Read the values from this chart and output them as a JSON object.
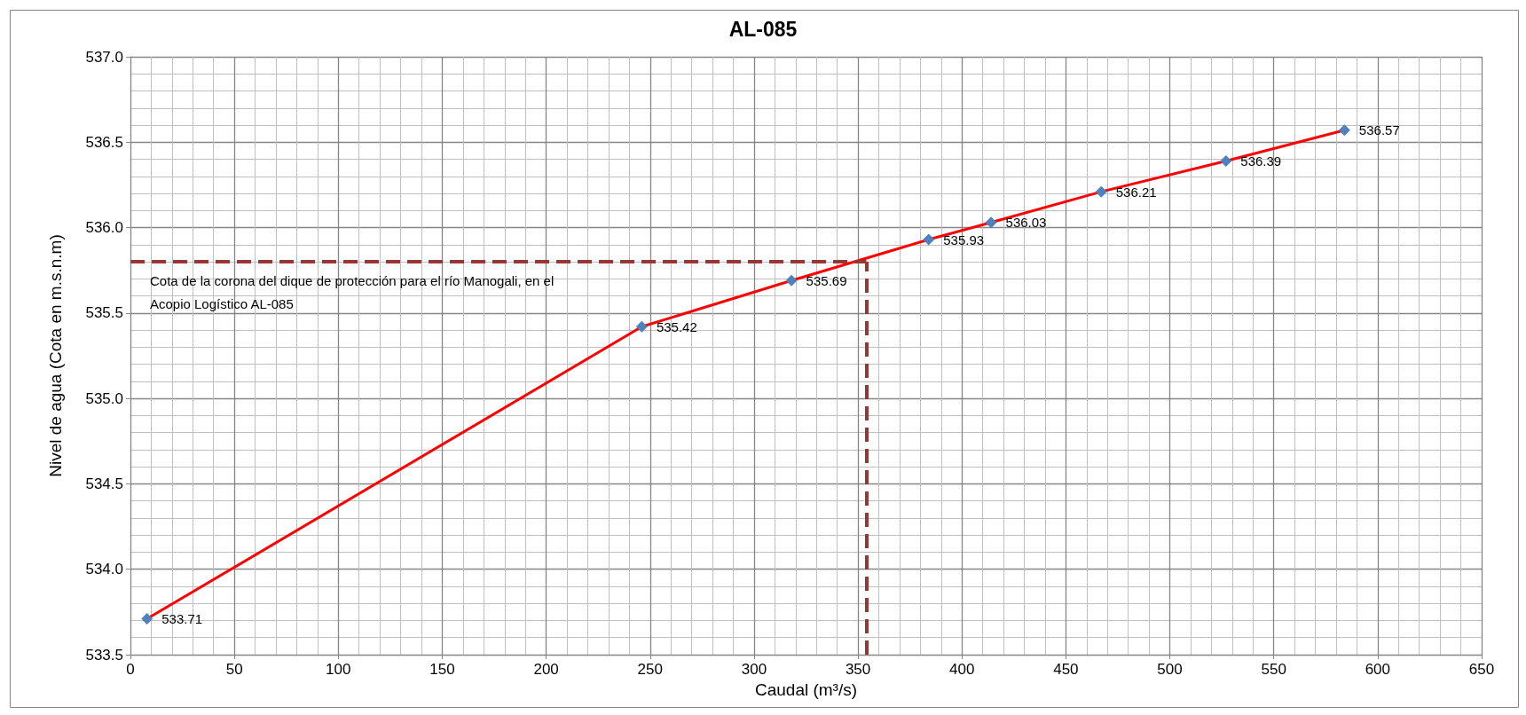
{
  "chart_data": {
    "type": "line",
    "title": "AL-085",
    "xlabel": "Caudal (m³/s)",
    "ylabel": "Nivel de agua (Cota en m.s.n.m)",
    "x": [
      8,
      246,
      318,
      384,
      414,
      467,
      527,
      584
    ],
    "series": [
      {
        "color": "#ff0000",
        "colors": [
          "#4f81bd",
          "#4f81bd",
          "#4f81bd",
          "#4f81bd",
          "#4f81bd",
          "#4f81bd",
          "#4f81bd",
          "#4f81bd"
        ],
        "values": [
          533.71,
          535.42,
          535.69,
          535.93,
          536.03,
          536.21,
          536.39,
          536.57
        ]
      }
    ],
    "marker": "diamond",
    "data_labels": true,
    "ref_lines": [
      {
        "axis": "y",
        "value": 535.8,
        "label": "Cota de la corona del dique de protección para el río Manogali, en el Acopio Logístico AL-085",
        "color": "#953735",
        "line_style": "dashed"
      },
      {
        "axis": "x",
        "value": 354,
        "color": "#953735",
        "line_style": "dashed"
      }
    ],
    "xlim": [
      0,
      650
    ],
    "xticks": [
      0,
      50,
      100,
      150,
      200,
      250,
      300,
      350,
      400,
      450,
      500,
      550,
      600,
      650
    ],
    "ylim": [
      533.5,
      537
    ],
    "yticks": [
      {
        "value": 533.5,
        "label": "533.5"
      },
      {
        "value": 534,
        "label": "534.0"
      },
      {
        "value": 534.5,
        "label": "534.5"
      },
      {
        "value": 535,
        "label": "535.0"
      },
      {
        "value": 535.5,
        "label": "535.5"
      },
      {
        "value": 536,
        "label": "536.0"
      },
      {
        "value": 536.5,
        "label": "536.5"
      },
      {
        "value": 537,
        "label": "537.0"
      }
    ],
    "grid": true
  }
}
